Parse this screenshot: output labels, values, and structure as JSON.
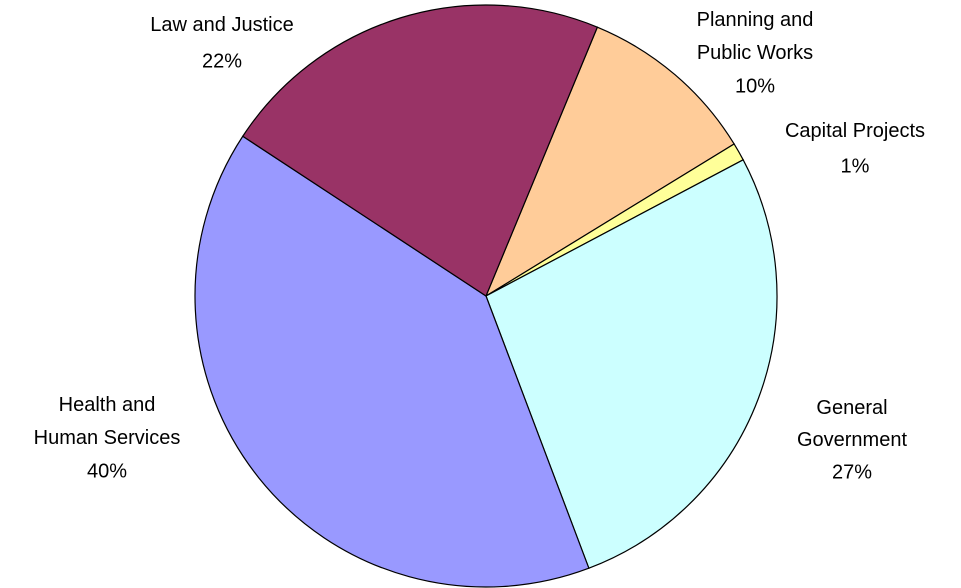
{
  "chart_data": {
    "type": "pie",
    "categories": [
      "Planning and\nPublic Works",
      "Capital Projects",
      "General\nGovernment",
      "Health and\nHuman Services",
      "Law and Justice"
    ],
    "values": [
      10,
      1,
      27,
      40,
      22
    ],
    "value_labels": [
      "10%",
      "1%",
      "27%",
      "40%",
      "22%"
    ],
    "colors": [
      "#FFCC99",
      "#FFFF99",
      "#CCFFFF",
      "#9999FF",
      "#993366"
    ]
  }
}
